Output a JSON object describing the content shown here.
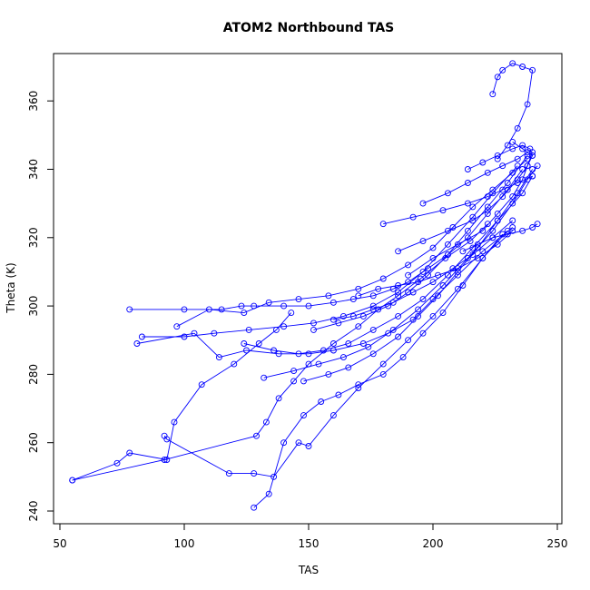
{
  "colors": {
    "series": "#0000ff",
    "axis": "#000000",
    "background": "#ffffff"
  },
  "chart_data": {
    "type": "line",
    "title": "ATOM2 Northbound TAS",
    "xlabel": "TAS",
    "ylabel": "Theta (K)",
    "xlim": [
      50,
      250
    ],
    "ylim": [
      240,
      375
    ],
    "xticks": [
      50,
      100,
      150,
      200,
      250
    ],
    "yticks": [
      240,
      260,
      280,
      300,
      320,
      340,
      360
    ],
    "marker": "open-circle",
    "grid": false,
    "legend": "none",
    "series": [
      {
        "x": [
          55,
          73,
          78,
          93,
          96,
          107,
          120,
          130,
          137,
          143
        ],
        "y": [
          249,
          254,
          257,
          255,
          266,
          277,
          283,
          289,
          293,
          298
        ]
      },
      {
        "x": [
          55,
          92,
          129,
          133,
          138,
          144,
          150,
          160,
          170,
          178,
          186,
          195,
          205,
          215,
          222
        ],
        "y": [
          249,
          255,
          262,
          266,
          273,
          278,
          283,
          289,
          294,
          299,
          303,
          308,
          314,
          319,
          324
        ]
      },
      {
        "x": [
          92,
          93,
          118,
          128,
          136,
          146,
          150,
          160,
          170,
          180,
          190,
          200,
          210,
          220,
          228
        ],
        "y": [
          262,
          261,
          251,
          251,
          250,
          260,
          259,
          268,
          276,
          283,
          290,
          297,
          305,
          314,
          321
        ]
      },
      {
        "x": [
          128,
          134,
          140,
          148,
          155,
          162,
          170,
          180,
          188,
          196,
          204,
          212,
          220,
          230
        ],
        "y": [
          241,
          245,
          260,
          268,
          272,
          274,
          277,
          280,
          285,
          292,
          298,
          306,
          314,
          322
        ]
      },
      {
        "x": [
          78,
          100,
          115,
          123,
          128,
          140,
          150,
          160,
          168,
          176,
          184,
          190,
          198,
          206,
          214,
          222,
          230,
          236
        ],
        "y": [
          299,
          299,
          299,
          300,
          300,
          300,
          300,
          301,
          302,
          303,
          305,
          307,
          311,
          315,
          320,
          327,
          334,
          340
        ]
      },
      {
        "x": [
          81,
          104,
          114,
          125,
          138,
          150,
          160,
          172,
          182,
          192,
          200,
          210,
          220,
          232
        ],
        "y": [
          289,
          292,
          285,
          287,
          286,
          286,
          287,
          289,
          292,
          296,
          302,
          309,
          316,
          323
        ]
      },
      {
        "x": [
          83,
          100,
          112,
          126,
          140,
          152,
          164,
          176,
          186,
          196,
          206,
          216,
          224,
          234
        ],
        "y": [
          291,
          291,
          292,
          293,
          294,
          295,
          297,
          300,
          304,
          310,
          318,
          326,
          333,
          341
        ]
      },
      {
        "x": [
          97,
          110,
          124,
          134,
          146,
          158,
          170,
          180,
          190,
          200,
          208,
          216,
          224,
          232,
          238
        ],
        "y": [
          294,
          299,
          298,
          301,
          302,
          303,
          305,
          308,
          312,
          317,
          323,
          329,
          334,
          339,
          343
        ]
      },
      {
        "x": [
          124,
          136,
          146,
          156,
          166,
          176,
          186,
          196,
          206,
          216,
          226,
          236,
          240
        ],
        "y": [
          289,
          287,
          286,
          287,
          289,
          293,
          297,
          302,
          309,
          317,
          325,
          333,
          338
        ]
      },
      {
        "x": [
          132,
          144,
          154,
          164,
          174,
          184,
          194,
          204,
          214,
          224,
          232,
          238,
          242
        ],
        "y": [
          279,
          281,
          283,
          285,
          288,
          293,
          299,
          306,
          314,
          322,
          330,
          337,
          341
        ]
      },
      {
        "x": [
          148,
          158,
          166,
          176,
          186,
          194,
          202,
          210,
          218,
          226,
          234,
          240
        ],
        "y": [
          278,
          280,
          282,
          286,
          291,
          297,
          303,
          310,
          317,
          325,
          333,
          340
        ]
      },
      {
        "x": [
          152,
          162,
          172,
          182,
          190,
          198,
          206,
          214,
          222,
          230,
          238
        ],
        "y": [
          293,
          295,
          297,
          300,
          304,
          309,
          315,
          322,
          329,
          336,
          344
        ]
      },
      {
        "x": [
          186,
          196,
          206,
          216,
          222,
          228,
          234,
          238,
          240,
          236,
          232
        ],
        "y": [
          316,
          319,
          322,
          325,
          328,
          332,
          337,
          341,
          344,
          346,
          348
        ]
      },
      {
        "x": [
          190,
          200,
          210,
          220,
          226,
          232,
          236,
          238,
          240
        ],
        "y": [
          309,
          314,
          318,
          322,
          327,
          332,
          337,
          341,
          345
        ]
      },
      {
        "x": [
          180,
          192,
          204,
          214,
          222,
          228,
          234,
          240
        ],
        "y": [
          324,
          326,
          328,
          330,
          332,
          334,
          336,
          338
        ]
      },
      {
        "x": [
          196,
          206,
          214,
          222,
          228,
          234,
          238
        ],
        "y": [
          330,
          333,
          336,
          339,
          341,
          343,
          345
        ]
      },
      {
        "x": [
          224,
          226,
          228,
          232,
          236,
          240,
          238,
          234,
          230,
          226
        ],
        "y": [
          362,
          367,
          369,
          371,
          370,
          369,
          359,
          352,
          347,
          343
        ]
      },
      {
        "x": [
          214,
          220,
          226,
          232,
          236,
          239,
          240
        ],
        "y": [
          340,
          342,
          344,
          346,
          347,
          346,
          344
        ]
      },
      {
        "x": [
          212,
          218,
          224,
          230,
          236,
          240,
          242
        ],
        "y": [
          316,
          318,
          320,
          321,
          322,
          323,
          324
        ]
      },
      {
        "x": [
          170,
          178,
          186,
          194,
          202,
          210,
          218,
          226,
          232
        ],
        "y": [
          303,
          305,
          306,
          307,
          309,
          311,
          314,
          318,
          322
        ]
      },
      {
        "x": [
          160,
          168,
          176,
          184,
          192,
          200,
          208,
          216,
          224,
          232
        ],
        "y": [
          296,
          297,
          299,
          301,
          304,
          307,
          311,
          315,
          320,
          325
        ]
      }
    ]
  }
}
